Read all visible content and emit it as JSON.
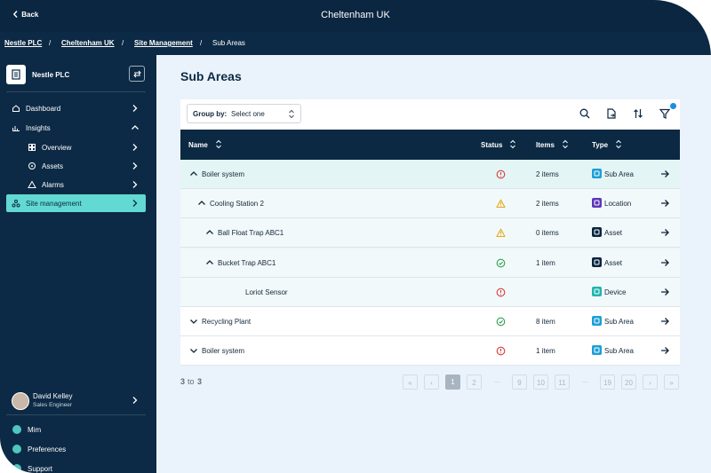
{
  "header": {
    "back": "Back",
    "title": "Cheltenham UK"
  },
  "breadcrumb": [
    "Nestle PLC",
    "Cheltenham UK",
    "Site Management",
    "Sub Areas"
  ],
  "sidebar": {
    "org": "Nestle PLC",
    "nav": [
      {
        "label": "Dashboard",
        "level": 0,
        "active": false,
        "expanded": false
      },
      {
        "label": "Insights",
        "level": 0,
        "active": false,
        "expanded": true
      },
      {
        "label": "Overview",
        "level": 1,
        "active": false,
        "expanded": false
      },
      {
        "label": "Assets",
        "level": 1,
        "active": false,
        "expanded": false
      },
      {
        "label": "Alarms",
        "level": 1,
        "active": false,
        "expanded": false
      },
      {
        "label": "Site management",
        "level": 0,
        "active": true,
        "expanded": false
      }
    ],
    "user": {
      "name": "David Kelley",
      "role": "Sales Engineer"
    },
    "links": [
      "Mim",
      "Preferences",
      "Support"
    ]
  },
  "main": {
    "title": "Sub Areas",
    "toolbar": {
      "group_by": "Group by:",
      "select": "Select one"
    },
    "table": {
      "columns": [
        "Name",
        "Status",
        "Items",
        "Type"
      ],
      "rows": [
        {
          "name": "Boiler system",
          "level": 0,
          "expanded": true,
          "status": "error",
          "items": "2 items",
          "type": "Sub Area",
          "type_color": "#1c9fd6"
        },
        {
          "name": "Cooling Station 2",
          "level": 1,
          "expanded": true,
          "status": "warning",
          "items": "2 items",
          "type": "Location",
          "type_color": "#5b37b8"
        },
        {
          "name": "Ball Float Trap ABC1",
          "level": 2,
          "expanded": true,
          "status": "warning",
          "items": "0 items",
          "type": "Asset",
          "type_color": "#0b2540"
        },
        {
          "name": "Bucket Trap ABC1",
          "level": 2,
          "expanded": true,
          "status": "ok",
          "items": "1 item",
          "type": "Asset",
          "type_color": "#0b2540"
        },
        {
          "name": "Loriot Sensor",
          "level": 3,
          "expanded": null,
          "status": "error",
          "items": null,
          "type": "Device",
          "type_color": "#1fb5ae"
        },
        {
          "name": "Recycling Plant",
          "level": 0,
          "expanded": false,
          "status": "ok",
          "items": "8 item",
          "type": "Sub Area",
          "type_color": "#1c9fd6"
        },
        {
          "name": "Boiler system",
          "level": 0,
          "expanded": false,
          "status": "error",
          "items": "1 item",
          "type": "Sub Area",
          "type_color": "#1c9fd6"
        }
      ]
    },
    "range": {
      "from": "3",
      "sep": "to",
      "to": "3"
    },
    "pagination": {
      "first": "«",
      "prev": "‹",
      "pages": [
        "1",
        "2",
        "···",
        "9",
        "10",
        "11",
        "···",
        "19",
        "20"
      ],
      "next": "›",
      "last": "»",
      "current": 0
    }
  }
}
